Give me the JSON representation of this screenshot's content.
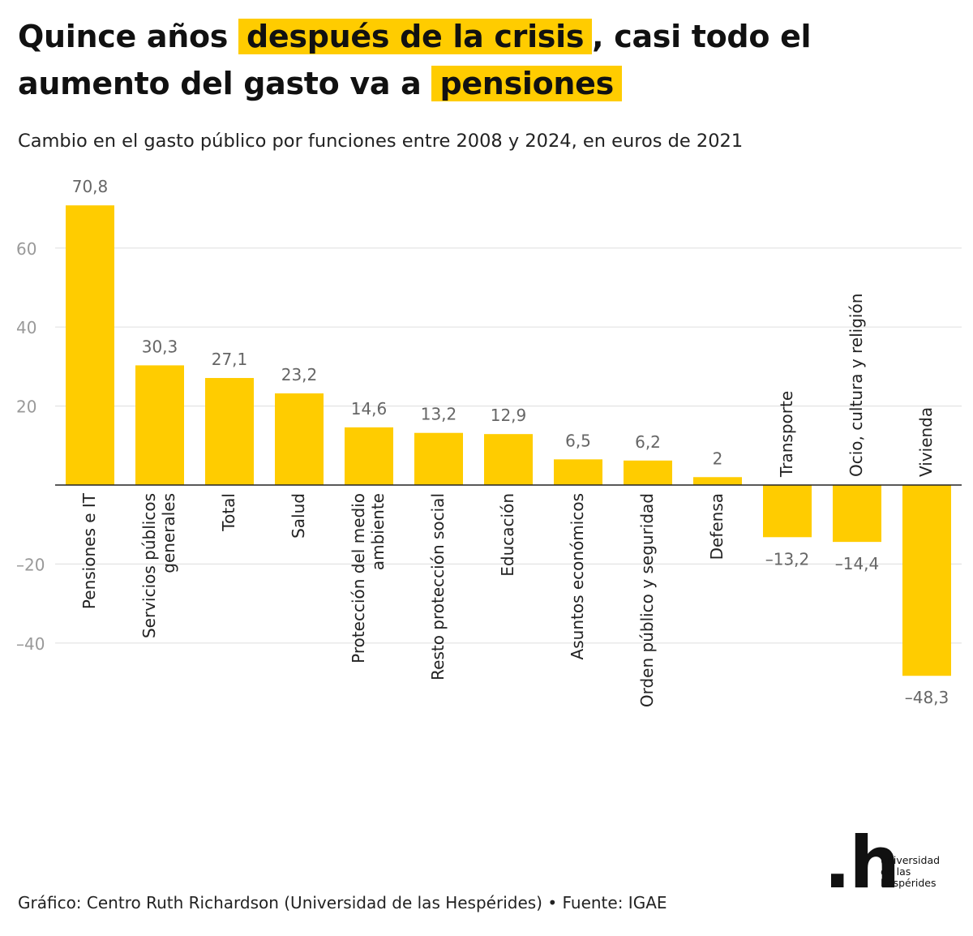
{
  "title": {
    "part1": "Quince años",
    "highlight1": "después de la crisis",
    "part2": ", casi todo el aumento del gasto va a",
    "highlight2": "pensiones"
  },
  "subtitle": "Cambio en el gasto público por funciones entre 2008 y 2024, en euros de 2021",
  "footer": "Gráfico: Centro Ruth Richardson (Universidad de las Hespérides) • Fuente: IGAE",
  "logo": {
    "mark": ".h",
    "line1": "universidad",
    "line2": "de las",
    "line3": "hespérides"
  },
  "colors": {
    "bar": "#FFCC00",
    "highlight": "#FFCC00",
    "grid": "#e3e3e3",
    "axis": "#222222",
    "tick_label": "#999999",
    "value_label": "#666666"
  },
  "chart_data": {
    "type": "bar",
    "title": "Quince años después de la crisis, casi todo el aumento del gasto va a pensiones",
    "subtitle": "Cambio en el gasto público por funciones entre 2008 y 2024, en euros de 2021",
    "categories": [
      [
        "Pensiones e IT"
      ],
      [
        "Servicios públicos",
        "generales"
      ],
      [
        "Total"
      ],
      [
        "Salud"
      ],
      [
        "Protección del medio",
        "ambiente"
      ],
      [
        "Resto protección social"
      ],
      [
        "Educación"
      ],
      [
        "Asuntos económicos"
      ],
      [
        "Orden público y seguridad"
      ],
      [
        "Defensa"
      ],
      [
        "Transporte"
      ],
      [
        "Ocio, cultura y religión"
      ],
      [
        "Vivienda"
      ]
    ],
    "values": [
      70.8,
      30.3,
      27.1,
      23.2,
      14.6,
      13.2,
      12.9,
      6.5,
      6.2,
      2,
      -13.2,
      -14.4,
      -48.3
    ],
    "value_labels": [
      "70,8",
      "30,3",
      "27,1",
      "23,2",
      "14,6",
      "13,2",
      "12,9",
      "6,5",
      "6,2",
      "2",
      "–13,2",
      "–14,4",
      "–48,3"
    ],
    "yticks": [
      60,
      40,
      20,
      -20,
      -40
    ],
    "ytick_labels": [
      "60",
      "40",
      "20",
      "–20",
      "–40"
    ],
    "ylim": [
      -55,
      72
    ],
    "xlabel": "",
    "ylabel": "",
    "grid": true
  }
}
